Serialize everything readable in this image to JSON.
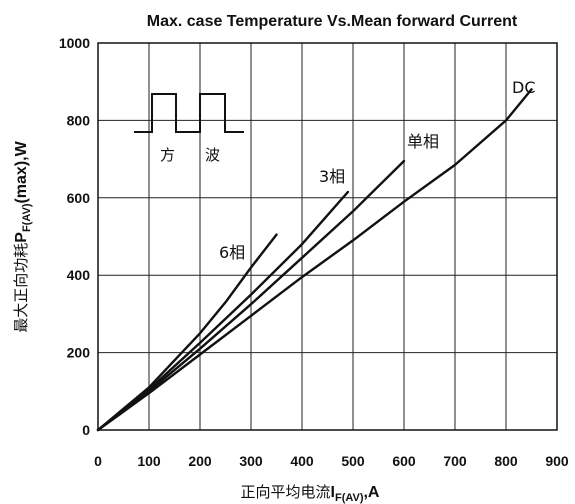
{
  "chart_data": {
    "type": "line",
    "title": "Max. case Temperature Vs.Mean forward Current",
    "xlabel": {
      "prefix": "正向平均电流",
      "main": "I",
      "sub": "F(AV)",
      "suffix": ",A"
    },
    "ylabel": {
      "prefix": "最大正向功耗",
      "main": "P",
      "sub": "F(AV)",
      "suffix": "(max),W"
    },
    "xlim": [
      0,
      900
    ],
    "ylim": [
      0,
      1000
    ],
    "xticks": [
      0,
      100,
      200,
      300,
      400,
      500,
      600,
      700,
      800,
      900
    ],
    "yticks": [
      0,
      200,
      400,
      600,
      800,
      1000
    ],
    "grid": true,
    "series": [
      {
        "name": "6相",
        "x": [
          0,
          100,
          200,
          250,
          300,
          350
        ],
        "y": [
          0,
          110,
          250,
          330,
          420,
          505
        ]
      },
      {
        "name": "3相",
        "x": [
          0,
          100,
          200,
          300,
          400,
          490
        ],
        "y": [
          0,
          105,
          225,
          350,
          480,
          615
        ]
      },
      {
        "name": "单相",
        "x": [
          0,
          100,
          200,
          300,
          400,
          500,
          600
        ],
        "y": [
          0,
          100,
          210,
          325,
          445,
          565,
          695
        ]
      },
      {
        "name": "DC",
        "x": [
          0,
          100,
          200,
          300,
          400,
          500,
          600,
          700,
          800,
          850
        ],
        "y": [
          0,
          95,
          195,
          295,
          395,
          490,
          590,
          685,
          800,
          880
        ]
      }
    ],
    "inset": {
      "label_left": "方",
      "label_right": "波"
    }
  }
}
